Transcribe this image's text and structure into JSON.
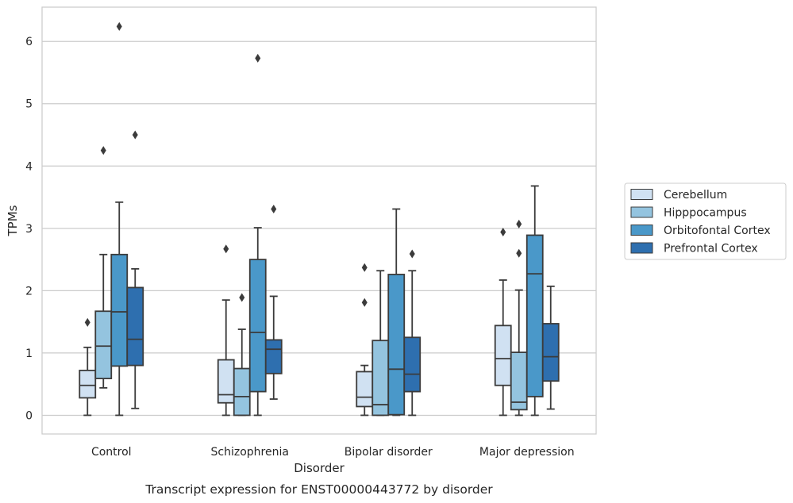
{
  "chart_data": {
    "type": "boxplot",
    "caption": "Transcript expression for ENST00000443772 by disorder",
    "xlabel": "Disorder",
    "ylabel": "TPMs",
    "ylim": [
      -0.3,
      6.55
    ],
    "yticks": [
      0,
      1,
      2,
      3,
      4,
      5,
      6
    ],
    "grid": true,
    "legend_position": "right",
    "categories": [
      "Control",
      "Schizophrenia",
      "Bipolar disorder",
      "Major depression"
    ],
    "series": [
      {
        "name": "Cerebellum",
        "color": "#d0e1f2",
        "boxes": [
          {
            "whislo": 0.0,
            "q1": 0.28,
            "med": 0.48,
            "q3": 0.72,
            "whishi": 1.09,
            "fliers": [
              1.49
            ]
          },
          {
            "whislo": 0.0,
            "q1": 0.2,
            "med": 0.33,
            "q3": 0.89,
            "whishi": 1.85,
            "fliers": [
              2.67
            ]
          },
          {
            "whislo": 0.0,
            "q1": 0.14,
            "med": 0.29,
            "q3": 0.7,
            "whishi": 0.8,
            "fliers": [
              1.81,
              2.37
            ]
          },
          {
            "whislo": 0.0,
            "q1": 0.48,
            "med": 0.91,
            "q3": 1.44,
            "whishi": 2.17,
            "fliers": [
              2.94
            ]
          }
        ]
      },
      {
        "name": "Hipppocampus",
        "color": "#94c4df",
        "boxes": [
          {
            "whislo": 0.44,
            "q1": 0.59,
            "med": 1.11,
            "q3": 1.67,
            "whishi": 2.58,
            "fliers": [
              4.25
            ]
          },
          {
            "whislo": 0.0,
            "q1": 0.0,
            "med": 0.3,
            "q3": 0.75,
            "whishi": 1.38,
            "fliers": [
              1.89
            ]
          },
          {
            "whislo": 0.0,
            "q1": 0.0,
            "med": 0.17,
            "q3": 1.2,
            "whishi": 2.32,
            "fliers": []
          },
          {
            "whislo": 0.0,
            "q1": 0.09,
            "med": 0.21,
            "q3": 1.01,
            "whishi": 2.01,
            "fliers": [
              2.6,
              3.07
            ]
          }
        ]
      },
      {
        "name": "Orbitofontal Cortex",
        "color": "#4a98c9",
        "boxes": [
          {
            "whislo": 0.0,
            "q1": 0.79,
            "med": 1.66,
            "q3": 2.58,
            "whishi": 3.42,
            "fliers": [
              6.24
            ]
          },
          {
            "whislo": 0.0,
            "q1": 0.38,
            "med": 1.33,
            "q3": 2.5,
            "whishi": 3.01,
            "fliers": [
              5.73
            ]
          },
          {
            "whislo": 0.0,
            "q1": 0.01,
            "med": 0.74,
            "q3": 2.26,
            "whishi": 3.31,
            "fliers": []
          },
          {
            "whislo": 0.0,
            "q1": 0.3,
            "med": 2.27,
            "q3": 2.89,
            "whishi": 3.68,
            "fliers": []
          }
        ]
      },
      {
        "name": "Prefrontal Cortex",
        "color": "#2e6faf",
        "boxes": [
          {
            "whislo": 0.11,
            "q1": 0.8,
            "med": 1.22,
            "q3": 2.05,
            "whishi": 2.35,
            "fliers": [
              4.5
            ]
          },
          {
            "whislo": 0.26,
            "q1": 0.67,
            "med": 1.06,
            "q3": 1.21,
            "whishi": 1.91,
            "fliers": [
              3.31
            ]
          },
          {
            "whislo": 0.0,
            "q1": 0.38,
            "med": 0.66,
            "q3": 1.25,
            "whishi": 2.32,
            "fliers": [
              2.59
            ]
          },
          {
            "whislo": 0.1,
            "q1": 0.55,
            "med": 0.94,
            "q3": 1.47,
            "whishi": 2.07,
            "fliers": []
          }
        ]
      }
    ]
  }
}
